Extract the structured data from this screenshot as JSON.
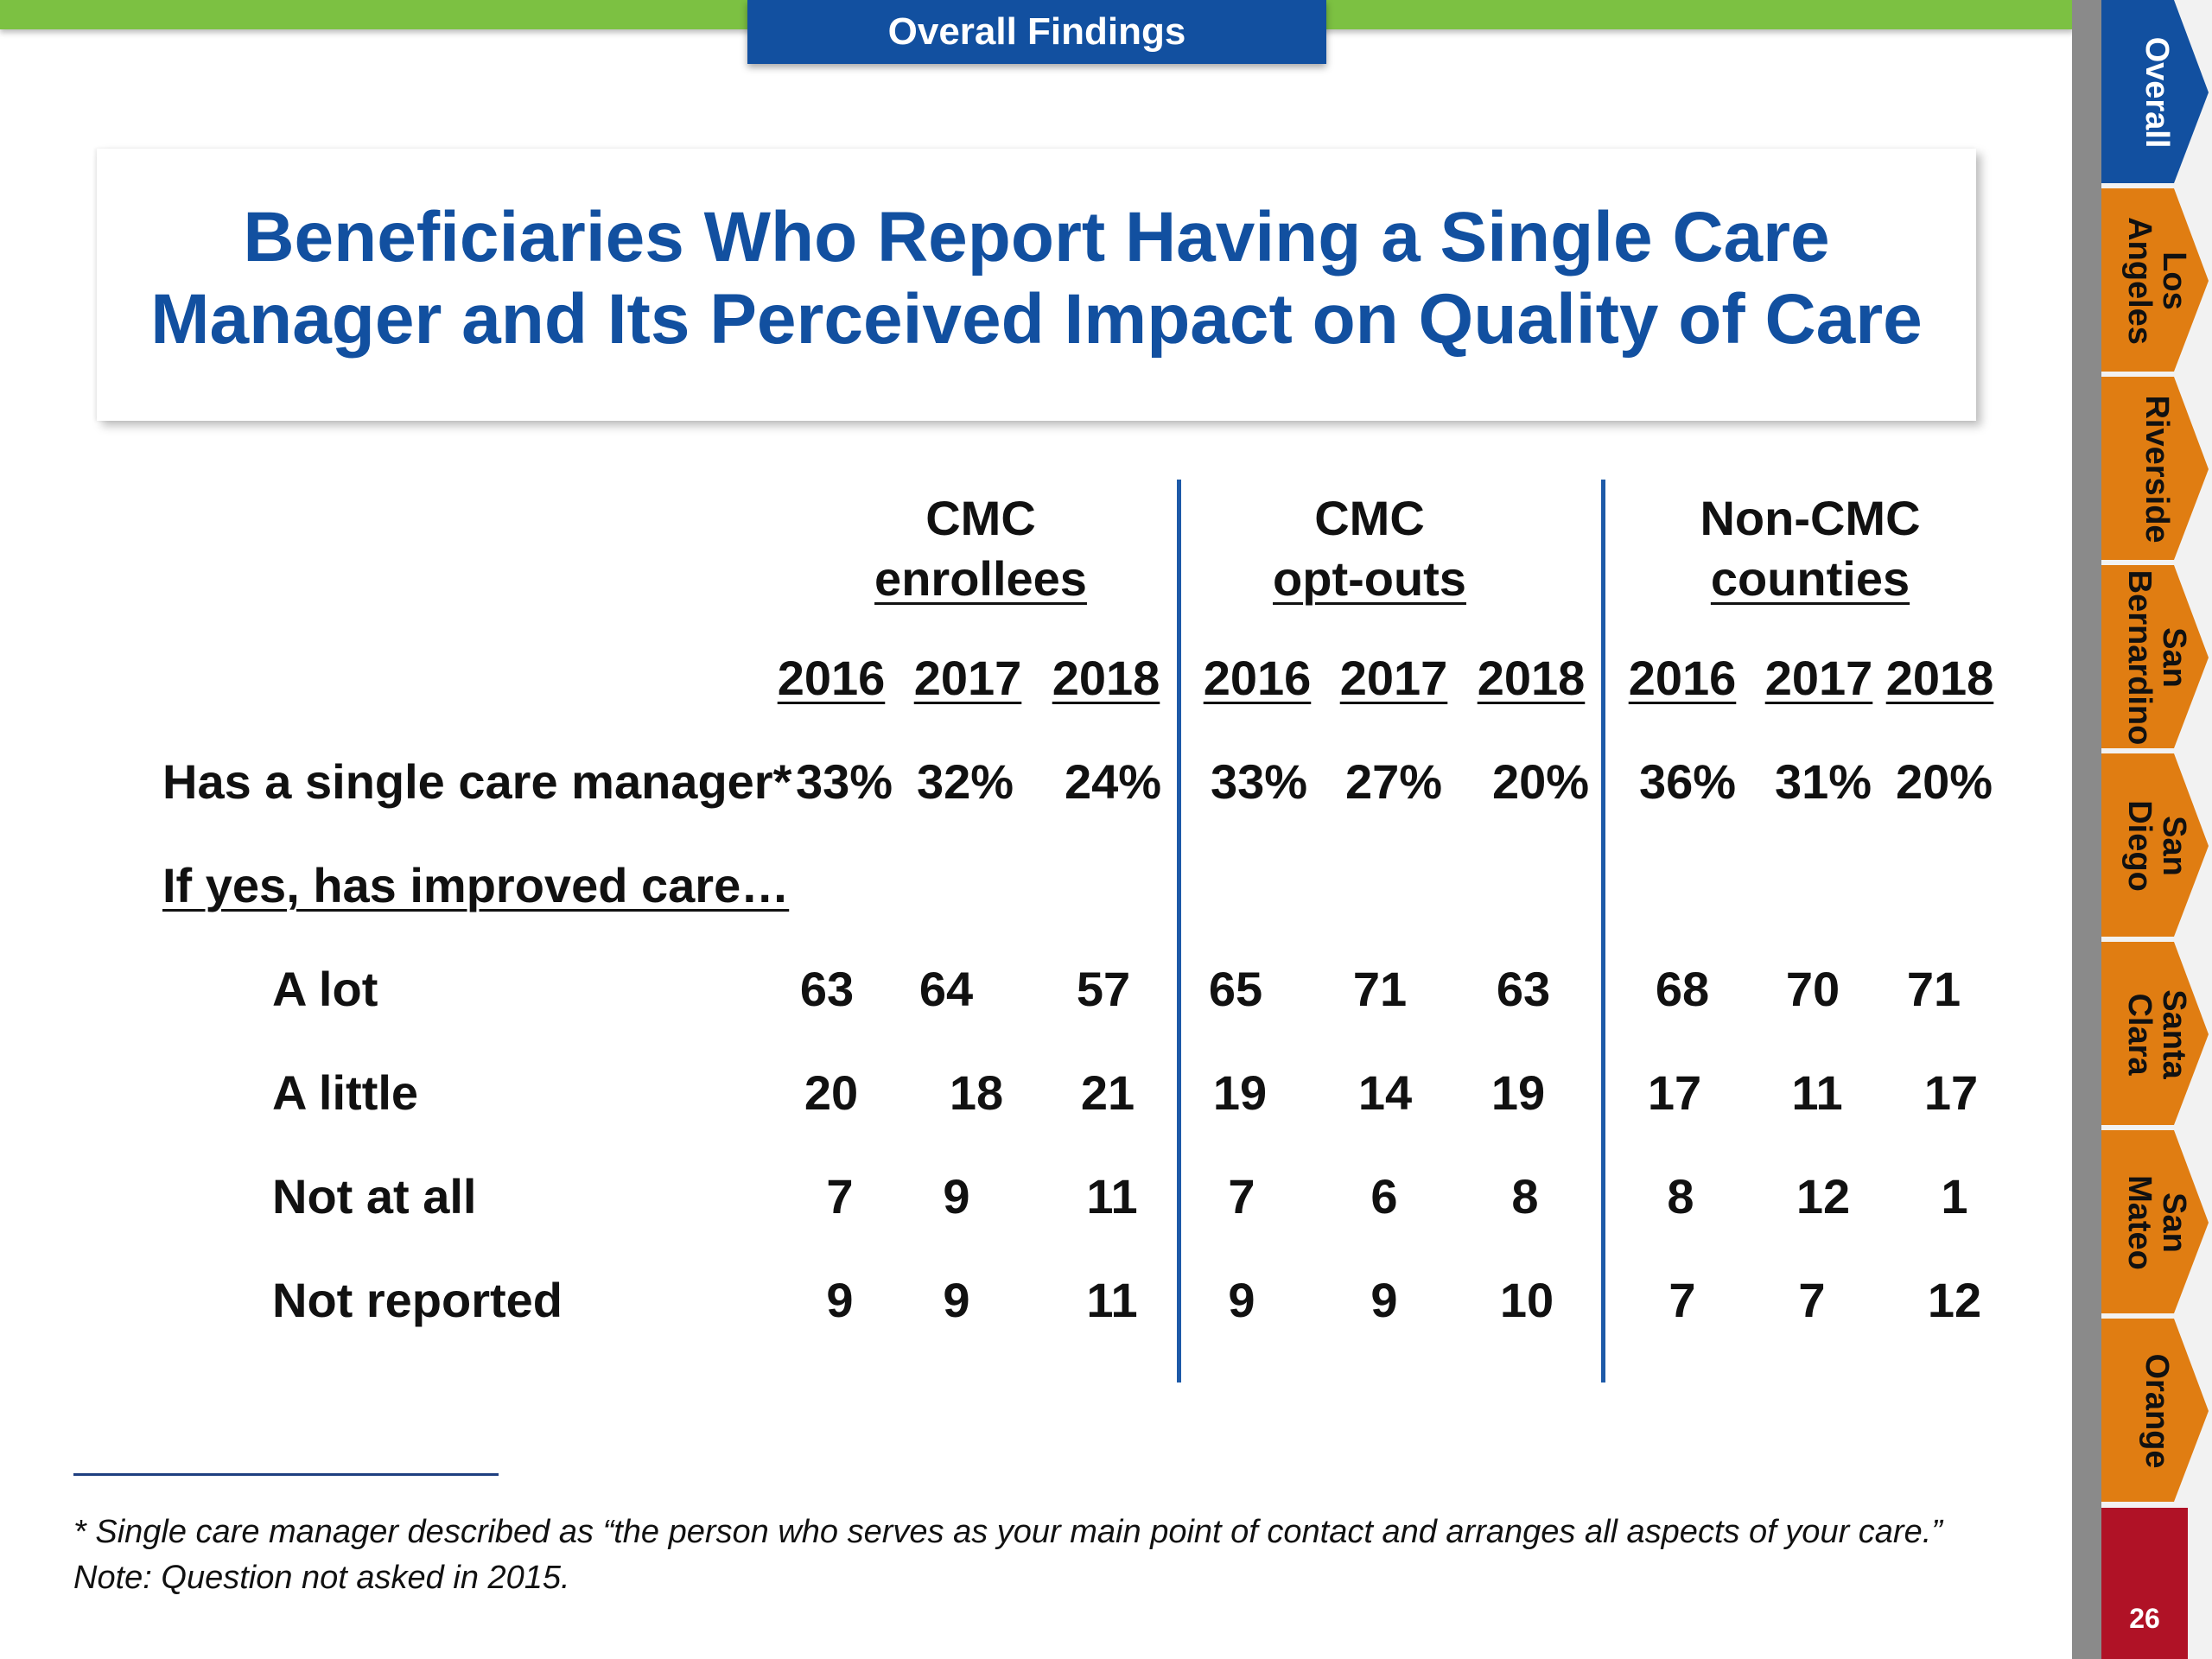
{
  "header": {
    "section_label": "Overall Findings"
  },
  "title": {
    "line1": "Beneficiaries Who Report Having a Single Care",
    "line2": "Manager and Its Perceived Impact on Quality of Care"
  },
  "table": {
    "groups": [
      {
        "line1": "CMC",
        "line2": "enrollees"
      },
      {
        "line1": "CMC",
        "line2": "opt-outs"
      },
      {
        "line1": "Non-CMC",
        "line2": "counties"
      }
    ],
    "years": [
      "2016",
      "2017",
      "2018",
      "2016",
      "2017",
      "2018",
      "2016",
      "2017",
      "2018"
    ],
    "single_manager": {
      "label": "Has a single care manager*",
      "values": [
        "33%",
        "32%",
        "24%",
        "33%",
        "27%",
        "20%",
        "36%",
        "31%",
        "20%"
      ]
    },
    "subheader": "If yes, has improved care…",
    "rows": [
      {
        "label": "A lot",
        "values": [
          "63",
          "64",
          "57",
          "65",
          "71",
          "63",
          "68",
          "70",
          "71"
        ]
      },
      {
        "label": "A little",
        "values": [
          "20",
          "18",
          "21",
          "19",
          "14",
          "19",
          "17",
          "11",
          "17"
        ]
      },
      {
        "label": "Not at all",
        "values": [
          "7",
          "9",
          "11",
          "7",
          "6",
          "8",
          "8",
          "12",
          "1"
        ]
      },
      {
        "label": "Not reported",
        "values": [
          "9",
          "9",
          "11",
          "9",
          "9",
          "10",
          "7",
          "7",
          "12"
        ]
      }
    ]
  },
  "footnotes": {
    "line1": "* Single care manager described as “the person who serves as your main point of contact and arranges all aspects of your care.”",
    "line2": "Note: Question not asked in 2015."
  },
  "sidebar": {
    "tabs": [
      {
        "line1": "Overall",
        "line2": ""
      },
      {
        "line1": "Los",
        "line2": "Angeles"
      },
      {
        "line1": "Riverside",
        "line2": ""
      },
      {
        "line1": "San",
        "line2": "Bernardino"
      },
      {
        "line1": "San",
        "line2": "Diego"
      },
      {
        "line1": "Santa",
        "line2": "Clara"
      },
      {
        "line1": "San",
        "line2": "Mateo"
      },
      {
        "line1": "Orange",
        "line2": ""
      }
    ],
    "page_number": "26"
  },
  "colors": {
    "accent_green": "#7cc142",
    "title_blue": "#1250a0",
    "tab_orange": "#e07d12",
    "page_red": "#b01226"
  }
}
